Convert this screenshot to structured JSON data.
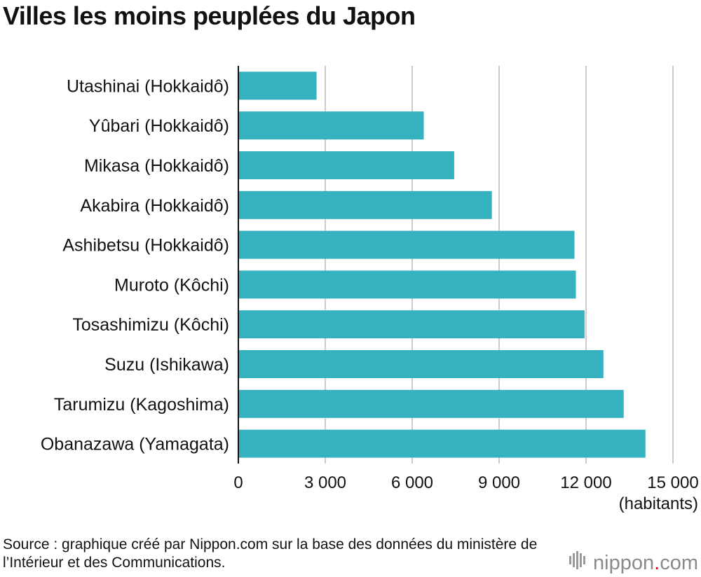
{
  "title": "Villes les moins peuplées du Japon",
  "source": "Source : graphique créé par Nippon.com sur la base des données du ministère de l’Intérieur et des Communications.",
  "brand": {
    "name": "nippon",
    "dot": ".",
    "tld": "com"
  },
  "colors": {
    "bar": "#36b1bf",
    "grid": "#cccccc",
    "axis": "#111111",
    "brand_dot": "#d6001c"
  },
  "chart_data": {
    "type": "bar",
    "orientation": "horizontal",
    "title": "Villes les moins peuplées du Japon",
    "categories": [
      "Utashinai (Hokkaidô)",
      "Yûbari (Hokkaidô)",
      "Mikasa (Hokkaidô)",
      "Akabira (Hokkaidô)",
      "Ashibetsu (Hokkaidô)",
      "Muroto (Kôchi)",
      "Tosashimizu (Kôchi)",
      "Suzu (Ishikawa)",
      "Tarumizu (Kagoshima)",
      "Obanazawa (Yamagata)"
    ],
    "values": [
      2700,
      6400,
      7450,
      8750,
      11600,
      11650,
      11950,
      12600,
      13300,
      14050
    ],
    "xlabel": "(habitants)",
    "xlim": [
      0,
      15000
    ],
    "xticks": [
      0,
      3000,
      6000,
      9000,
      12000,
      15000
    ],
    "xtick_labels": [
      "0",
      "3 000",
      "6 000",
      "9 000",
      "12 000",
      "15 000"
    ],
    "grid": true
  }
}
